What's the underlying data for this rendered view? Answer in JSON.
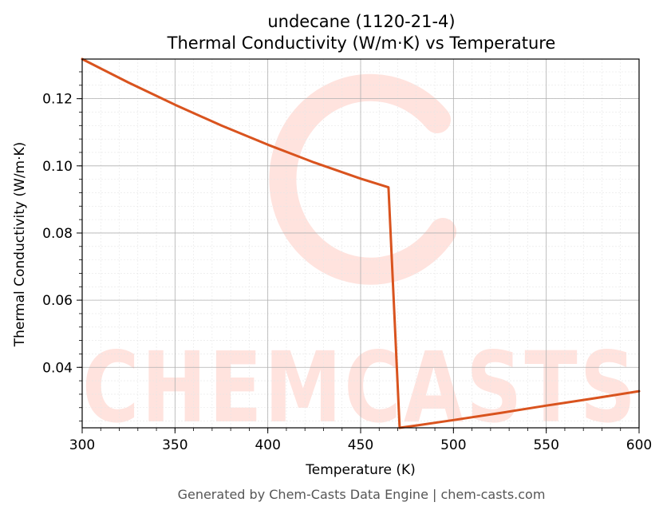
{
  "chart_data": {
    "type": "line",
    "title": "undecane (1120-21-4)",
    "subtitle": "Thermal Conductivity (W/m·K) vs Temperature",
    "xlabel": "Temperature (K)",
    "ylabel": "Thermal Conductivity (W/m·K)",
    "xlim": [
      300,
      600
    ],
    "ylim": [
      0.022,
      0.1318
    ],
    "xticks": [
      300,
      350,
      400,
      450,
      500,
      550,
      600
    ],
    "xtick_labels": [
      "300",
      "350",
      "400",
      "450",
      "500",
      "550",
      "600"
    ],
    "yticks": [
      0.04,
      0.06,
      0.08,
      0.1,
      0.12
    ],
    "ytick_labels": [
      "0.04",
      "0.06",
      "0.08",
      "0.10",
      "0.12"
    ],
    "grid": true,
    "series": [
      {
        "color": "#d9531e",
        "x": [
          300,
          325,
          350,
          375,
          400,
          425,
          450,
          465,
          471,
          480,
          500,
          525,
          550,
          575,
          600
        ],
        "y": [
          0.1318,
          0.1248,
          0.1182,
          0.112,
          0.1063,
          0.101,
          0.0962,
          0.0936,
          0.022,
          0.0227,
          0.0243,
          0.0264,
          0.0286,
          0.0307,
          0.0329
        ]
      }
    ]
  },
  "watermark": {
    "text": "CHEMCASTS"
  },
  "footer": {
    "text": "Generated by Chem-Casts Data Engine | chem-casts.com"
  }
}
